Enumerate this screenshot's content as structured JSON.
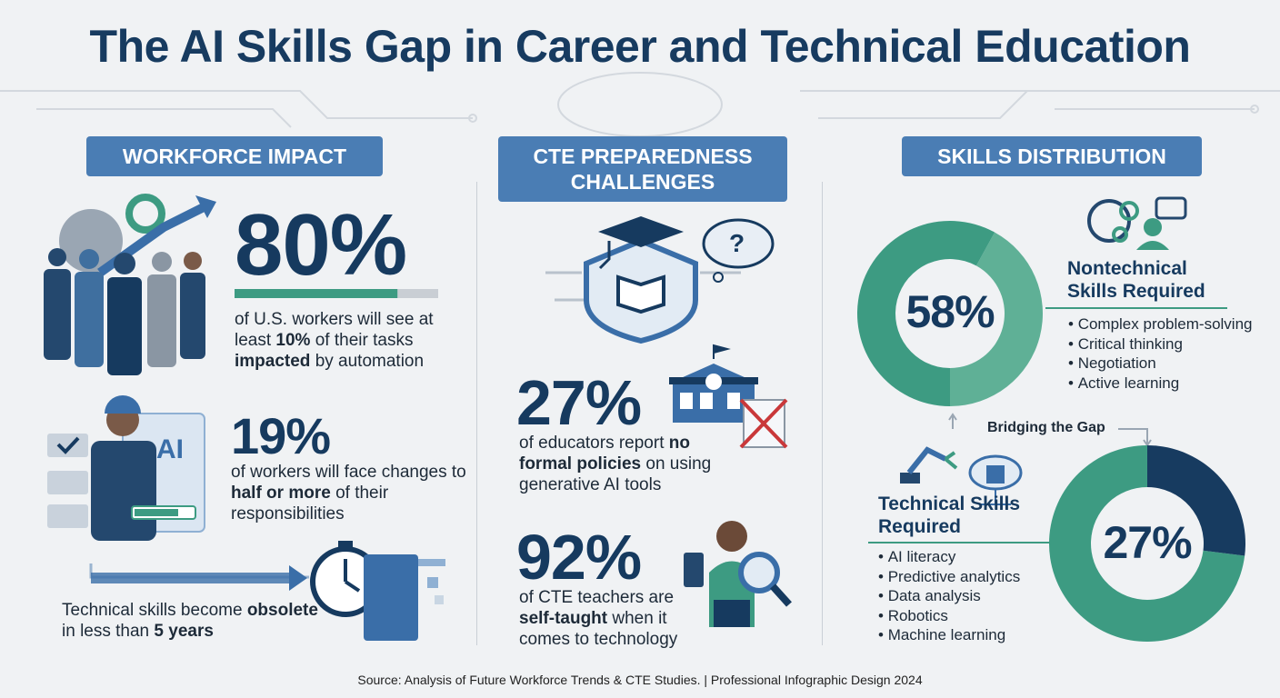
{
  "title": "The AI Skills Gap in Career and Technical Education",
  "workforce": {
    "heading": "WORKFORCE IMPACT",
    "stats": [
      {
        "value": 80,
        "label": "80%",
        "text": [
          "of U.S. workers will see at least ",
          {
            "t": "10%",
            "bold": true
          },
          " of their tasks ",
          {
            "t": "impacted",
            "bold": true
          },
          " by automation"
        ]
      },
      {
        "value": 19,
        "label": "19%",
        "text": [
          "of workers will face changes to ",
          {
            "t": "half or more",
            "bold": true
          },
          " of their responsibilities"
        ]
      }
    ],
    "icon_text": "AI",
    "note": [
      "Technical skills become ",
      {
        "t": "obsolete",
        "bold": true
      },
      " in less than ",
      {
        "t": "5 years",
        "bold": true
      }
    ]
  },
  "cte": {
    "heading": "CTE PREPAREDNESS CHALLENGES",
    "bubble_text": "?",
    "stats": [
      {
        "value": 27,
        "label": "27%",
        "text": [
          "of educators report ",
          {
            "t": "no formal policies",
            "bold": true
          },
          " on using generative AI tools"
        ]
      },
      {
        "value": 92,
        "label": "92%",
        "text": [
          "of CTE teachers are ",
          {
            "t": "self-taught",
            "bold": true
          },
          " when it comes to technology"
        ]
      }
    ]
  },
  "skills": {
    "heading": "SKILLS DISTRIBUTION",
    "nontechnical": {
      "value": 58,
      "label": "58%",
      "title": "Nontechnical Skills Required",
      "items": [
        "Complex problem-solving",
        "Critical thinking",
        "Negotiation",
        "Active learning"
      ]
    },
    "bridge": "Bridging the Gap",
    "technical": {
      "value": 27,
      "label": "27%",
      "title": "Technical Skills Required",
      "items": [
        "AI literacy",
        "Predictive analytics",
        "Data analysis",
        "Robotics",
        "Machine learning"
      ]
    }
  },
  "source": "Source: Analysis of Future Workforce Trends & CTE Studies. | Professional Infographic Design 2024"
}
